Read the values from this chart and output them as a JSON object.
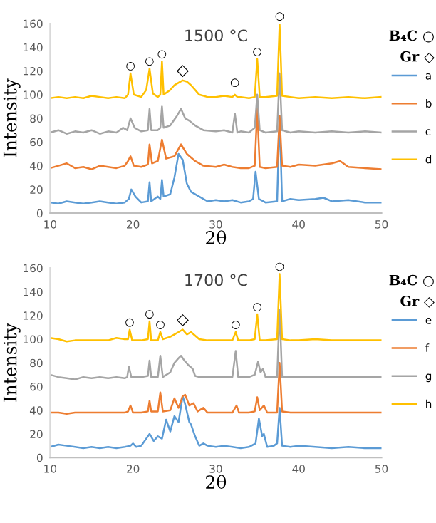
{
  "chart_data": [
    {
      "type": "line",
      "title": "1500 °C",
      "xlabel": "2θ",
      "ylabel": "Intensity",
      "xlim": [
        10,
        50
      ],
      "xticks": [
        10,
        20,
        30,
        40,
        50
      ],
      "ylim": [
        0,
        160
      ],
      "yticks": [
        0,
        20,
        40,
        60,
        80,
        100,
        120,
        140,
        160
      ],
      "legend": "right",
      "grid": false,
      "marker": "none",
      "series": [
        {
          "name": "a",
          "color": "#5b9bd5",
          "x": [
            10,
            11,
            12,
            13,
            14,
            15,
            16,
            17,
            18,
            19,
            19.5,
            19.8,
            20.3,
            21,
            21.8,
            22,
            22.2,
            23,
            23.3,
            23.5,
            23.7,
            24.5,
            25,
            25.5,
            26,
            26.5,
            27,
            28,
            29,
            30,
            31,
            32,
            33,
            34,
            34.5,
            34.8,
            35.2,
            36,
            37.4,
            37.7,
            38,
            39,
            40,
            42,
            43,
            44,
            46,
            48,
            50
          ],
          "values": [
            9,
            8,
            10,
            9,
            8,
            9,
            10,
            9,
            8,
            9,
            12,
            20,
            14,
            9,
            10,
            26,
            10,
            14,
            12,
            28,
            14,
            16,
            30,
            50,
            45,
            25,
            18,
            14,
            10,
            11,
            10,
            11,
            9,
            10,
            12,
            35,
            12,
            9,
            10,
            82,
            10,
            12,
            11,
            12,
            13,
            10,
            11,
            9,
            9
          ]
        },
        {
          "name": "b",
          "color": "#ed7d31",
          "x": [
            10,
            11,
            12,
            13,
            14,
            15,
            16,
            17,
            18,
            19,
            19.4,
            19.7,
            20.1,
            21,
            21.8,
            22,
            22.3,
            23,
            23.5,
            24,
            25,
            25.8,
            26.5,
            27.5,
            28.5,
            30,
            31,
            32,
            33,
            34,
            34.7,
            35,
            35.3,
            36,
            37.4,
            37.7,
            38,
            39,
            40,
            42,
            44,
            45,
            46,
            48,
            50
          ],
          "values": [
            38,
            40,
            42,
            38,
            39,
            37,
            40,
            39,
            38,
            40,
            44,
            48,
            40,
            39,
            41,
            58,
            42,
            44,
            62,
            46,
            48,
            58,
            50,
            44,
            40,
            39,
            41,
            39,
            38,
            38,
            40,
            88,
            39,
            38,
            39,
            82,
            40,
            39,
            41,
            40,
            42,
            44,
            39,
            38,
            37
          ]
        },
        {
          "name": "c",
          "color": "#a5a5a5",
          "x": [
            10,
            11,
            12,
            13,
            14,
            15,
            16,
            17,
            18,
            18.8,
            19.3,
            19.7,
            20.2,
            21,
            21.8,
            22,
            22.2,
            23,
            23.3,
            23.5,
            23.7,
            24.5,
            25.3,
            25.8,
            26.3,
            26.8,
            27.5,
            28.5,
            30,
            31,
            32,
            32.3,
            32.6,
            33,
            34,
            34.7,
            35,
            35.3,
            36,
            37.4,
            37.7,
            38,
            39,
            40,
            42,
            44,
            46,
            48,
            50
          ],
          "values": [
            68,
            70,
            67,
            69,
            68,
            70,
            67,
            69,
            68,
            72,
            70,
            80,
            72,
            69,
            70,
            88,
            70,
            70,
            72,
            90,
            72,
            74,
            82,
            88,
            80,
            78,
            74,
            70,
            69,
            70,
            68,
            84,
            68,
            69,
            68,
            72,
            100,
            70,
            68,
            69,
            118,
            70,
            68,
            69,
            68,
            69,
            68,
            69,
            68
          ]
        },
        {
          "name": "d",
          "color": "#ffc000",
          "x": [
            10,
            11,
            12,
            13,
            14,
            15,
            16,
            17,
            18,
            19,
            19.4,
            19.7,
            20.1,
            21,
            21.6,
            22,
            22.4,
            23,
            23.3,
            23.5,
            23.7,
            24.5,
            25,
            25.5,
            26,
            26.5,
            27,
            27.5,
            28,
            29,
            30,
            31,
            32,
            32.3,
            32.6,
            33,
            34,
            34.7,
            35,
            35.3,
            36,
            37.4,
            37.7,
            38,
            39,
            40,
            42,
            44,
            46,
            48,
            50
          ],
          "values": [
            97,
            98,
            97,
            98,
            97,
            99,
            98,
            97,
            98,
            97,
            100,
            118,
            100,
            98,
            104,
            122,
            101,
            98,
            100,
            128,
            100,
            104,
            108,
            110,
            112,
            111,
            108,
            104,
            100,
            98,
            98,
            99,
            98,
            100,
            98,
            98,
            97,
            98,
            130,
            98,
            98,
            99,
            160,
            99,
            98,
            97,
            98,
            97,
            98,
            97,
            98
          ]
        }
      ],
      "annotations": [
        {
          "text": "○",
          "x": 19.7,
          "y": 118
        },
        {
          "text": "○",
          "x": 22,
          "y": 122
        },
        {
          "text": "○",
          "x": 23.5,
          "y": 128
        },
        {
          "text": "◇",
          "x": 26,
          "y": 112
        },
        {
          "text": "○",
          "x": 32.3,
          "y": 104
        },
        {
          "text": "○",
          "x": 35,
          "y": 130
        },
        {
          "text": "○",
          "x": 37.7,
          "y": 160
        },
        "B₄C ○",
        "Gr ◇"
      ]
    },
    {
      "type": "line",
      "title": "1700 °C",
      "xlabel": "2θ",
      "ylabel": "Intensity",
      "xlim": [
        10,
        50
      ],
      "xticks": [
        10,
        20,
        30,
        40,
        50
      ],
      "ylim": [
        0,
        160
      ],
      "yticks": [
        0,
        20,
        40,
        60,
        80,
        100,
        120,
        140,
        160
      ],
      "legend": "right",
      "grid": false,
      "marker": "none",
      "series": [
        {
          "name": "e",
          "color": "#5b9bd5",
          "x": [
            10,
            11,
            12,
            13,
            14,
            15,
            16,
            17,
            18,
            19,
            19.7,
            20,
            20.4,
            21,
            22,
            22.5,
            23,
            23.5,
            24,
            24.5,
            25,
            25.5,
            26,
            26.3,
            26.8,
            27,
            27.5,
            28,
            28.5,
            29,
            30,
            31,
            32,
            33,
            34,
            34.8,
            35.2,
            35.6,
            35.8,
            36.2,
            37,
            37.4,
            37.7,
            38,
            39,
            40,
            42,
            44,
            46,
            48,
            50
          ],
          "values": [
            9,
            11,
            10,
            9,
            8,
            9,
            8,
            9,
            8,
            9,
            10,
            12,
            9,
            10,
            20,
            14,
            18,
            16,
            32,
            22,
            35,
            30,
            52,
            45,
            30,
            28,
            18,
            10,
            12,
            10,
            9,
            10,
            9,
            8,
            9,
            12,
            33,
            18,
            20,
            9,
            10,
            12,
            42,
            10,
            9,
            10,
            9,
            8,
            9,
            8,
            8
          ]
        },
        {
          "name": "f",
          "color": "#ed7d31",
          "x": [
            10,
            11,
            12,
            13,
            14,
            15,
            16,
            17,
            18,
            19,
            19.4,
            19.7,
            20,
            21,
            21.8,
            22,
            22.2,
            23,
            23.3,
            23.6,
            24.5,
            25,
            25.5,
            26,
            26.3,
            26.8,
            27.3,
            27.8,
            28.5,
            29,
            30,
            31,
            32,
            32.5,
            32.8,
            33,
            34,
            34.7,
            35,
            35.3,
            35.8,
            36.2,
            37.4,
            37.7,
            38,
            39,
            40,
            42,
            44,
            46,
            48,
            50
          ],
          "values": [
            38,
            38,
            37,
            38,
            38,
            38,
            38,
            38,
            38,
            38,
            39,
            44,
            38,
            38,
            39,
            48,
            39,
            39,
            55,
            39,
            40,
            50,
            42,
            52,
            53,
            44,
            46,
            39,
            42,
            38,
            38,
            38,
            38,
            44,
            38,
            38,
            38,
            39,
            51,
            40,
            44,
            38,
            38,
            80,
            39,
            38,
            38,
            38,
            38,
            38,
            38,
            38
          ]
        },
        {
          "name": "g",
          "color": "#a5a5a5",
          "x": [
            10,
            11,
            12,
            13,
            14,
            15,
            16,
            17,
            18,
            19,
            19.3,
            19.5,
            19.8,
            21,
            21.8,
            22,
            22.2,
            23,
            23.3,
            23.6,
            24.5,
            25,
            25.5,
            25.8,
            26.2,
            26.7,
            27.2,
            27.5,
            28,
            29,
            30,
            31,
            32,
            32.4,
            32.7,
            33,
            34,
            34.7,
            35.1,
            35.4,
            35.7,
            36,
            37.4,
            37.7,
            38,
            39,
            40,
            42,
            44,
            46,
            48,
            50
          ],
          "values": [
            70,
            68,
            67,
            66,
            68,
            67,
            68,
            67,
            68,
            67,
            68,
            77,
            68,
            68,
            69,
            82,
            68,
            68,
            86,
            68,
            72,
            80,
            84,
            86,
            82,
            78,
            75,
            69,
            68,
            68,
            68,
            68,
            68,
            90,
            68,
            68,
            68,
            70,
            81,
            72,
            75,
            68,
            68,
            125,
            68,
            68,
            68,
            68,
            68,
            68,
            68,
            68
          ]
        },
        {
          "name": "h",
          "color": "#ffc000",
          "x": [
            10,
            11,
            12,
            13,
            14,
            15,
            16,
            17,
            18,
            19,
            19.4,
            19.6,
            19.9,
            21,
            21.8,
            22,
            22.2,
            23,
            23.3,
            23.6,
            24.5,
            25,
            25.5,
            26,
            26.5,
            27,
            27.5,
            28,
            29,
            30,
            31,
            32,
            32.4,
            32.7,
            33,
            34,
            34.7,
            35,
            35.3,
            36,
            37.4,
            37.7,
            38,
            39,
            40,
            42,
            44,
            46,
            48,
            50
          ],
          "values": [
            101,
            100,
            98,
            99,
            99,
            99,
            99,
            99,
            101,
            100,
            100,
            108,
            99,
            99,
            100,
            115,
            99,
            99,
            106,
            100,
            102,
            104,
            106,
            108,
            104,
            106,
            103,
            100,
            99,
            99,
            99,
            99,
            106,
            99,
            99,
            99,
            100,
            121,
            99,
            99,
            100,
            155,
            100,
            99,
            99,
            100,
            99,
            99,
            99,
            99
          ]
        }
      ],
      "annotations": [
        {
          "text": "○",
          "x": 19.6,
          "y": 108
        },
        {
          "text": "○",
          "x": 22,
          "y": 115
        },
        {
          "text": "○",
          "x": 23.3,
          "y": 106
        },
        {
          "text": "◇",
          "x": 26,
          "y": 108
        },
        {
          "text": "○",
          "x": 32.4,
          "y": 106
        },
        {
          "text": "○",
          "x": 35,
          "y": 121
        },
        {
          "text": "○",
          "x": 37.7,
          "y": 155
        },
        "B₄C ○",
        "Gr ◇"
      ]
    }
  ]
}
